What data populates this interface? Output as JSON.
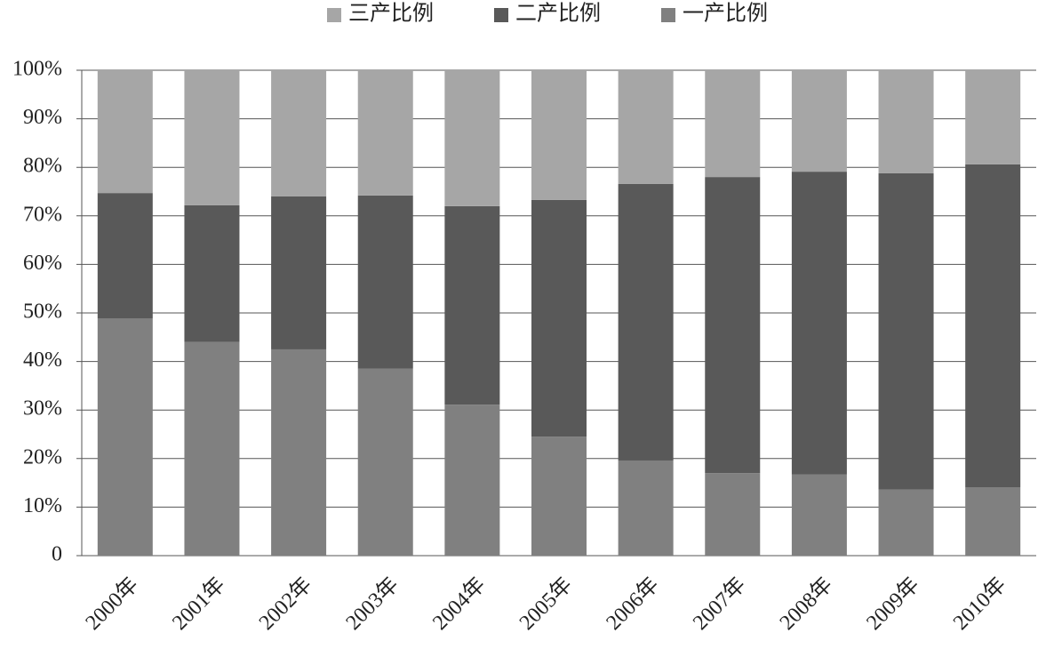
{
  "chart_data": {
    "type": "stacked_bar",
    "categories": [
      "2000年",
      "2001年",
      "2002年",
      "2003年",
      "2004年",
      "2005年",
      "2006年",
      "2007年",
      "2008年",
      "2009年",
      "2010年"
    ],
    "series": [
      {
        "name": "一产比例",
        "color": "#808080",
        "values": [
          48.9,
          44.0,
          42.5,
          38.5,
          31.1,
          24.5,
          19.6,
          17.0,
          16.7,
          13.6,
          14.1
        ]
      },
      {
        "name": "二产比例",
        "color": "#595959",
        "values": [
          25.8,
          28.2,
          31.5,
          35.7,
          40.9,
          48.8,
          57.0,
          61.0,
          62.4,
          65.2,
          66.5
        ]
      },
      {
        "name": "三产比例",
        "color": "#a6a6a6",
        "values": [
          25.3,
          27.8,
          26.0,
          25.8,
          28.0,
          26.7,
          23.4,
          22.0,
          20.9,
          21.2,
          19.4
        ]
      }
    ],
    "ylim": [
      0,
      100
    ],
    "yticks": [
      0,
      {
        "value": 10,
        "label": "10%"
      },
      {
        "value": 20,
        "label": "20%"
      },
      {
        "value": 30,
        "label": "30%"
      },
      {
        "value": 40,
        "label": "40%"
      },
      {
        "value": 50,
        "label": "50%"
      },
      {
        "value": 60,
        "label": "60%"
      },
      {
        "value": 70,
        "label": "70%"
      },
      {
        "value": 80,
        "label": "80%"
      },
      {
        "value": 90,
        "label": "90%"
      },
      {
        "value": 100,
        "label": "100%"
      }
    ],
    "grid": true,
    "legend": "top"
  }
}
